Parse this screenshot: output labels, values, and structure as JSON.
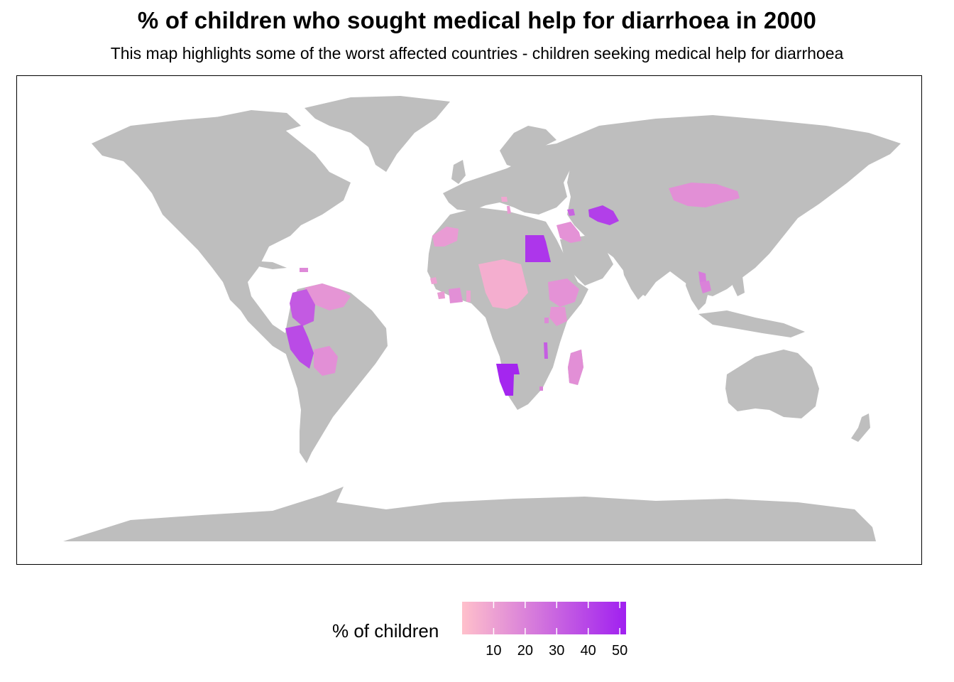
{
  "title": "% of children who sought medical help for diarrhoea in 2000",
  "subtitle": "This map highlights some of the worst affected countries - children seeking medical help for diarrhoea",
  "colors": {
    "land": "#bebebe",
    "scale_low": "#ffc0cb",
    "scale_high": "#a020f0",
    "border": "#000000"
  },
  "legend": {
    "title": "% of children",
    "ticks": [
      "10",
      "20",
      "30",
      "40",
      "50"
    ],
    "min": 0,
    "max": 52
  },
  "highlighted_regions": [
    {
      "name": "Mongolia",
      "value": 16
    },
    {
      "name": "Turkmenistan",
      "value": 42
    },
    {
      "name": "Armenia",
      "value": 30
    },
    {
      "name": "Egypt",
      "value": 45
    },
    {
      "name": "Jordan",
      "value": 15
    },
    {
      "name": "Iraq",
      "value": 15
    },
    {
      "name": "Albania",
      "value": 12
    },
    {
      "name": "Bosnia and Herzegovina",
      "value": 8
    },
    {
      "name": "Morocco",
      "value": 12
    },
    {
      "name": "Niger",
      "value": 6
    },
    {
      "name": "Chad",
      "value": 8
    },
    {
      "name": "Central African Republic",
      "value": 8
    },
    {
      "name": "Guinea-Bissau",
      "value": 10
    },
    {
      "name": "Sierra Leone",
      "value": 12
    },
    {
      "name": "Cote d'Ivoire",
      "value": 16
    },
    {
      "name": "Togo",
      "value": 10
    },
    {
      "name": "Ethiopia",
      "value": 15
    },
    {
      "name": "Kenya",
      "value": 14
    },
    {
      "name": "Rwanda",
      "value": 18
    },
    {
      "name": "Burundi",
      "value": 16
    },
    {
      "name": "Malawi",
      "value": 32
    },
    {
      "name": "Namibia",
      "value": 50
    },
    {
      "name": "Lesotho",
      "value": 20
    },
    {
      "name": "Madagascar",
      "value": 16
    },
    {
      "name": "Venezuela",
      "value": 14
    },
    {
      "name": "Colombia",
      "value": 33
    },
    {
      "name": "Guyana",
      "value": 12
    },
    {
      "name": "Suriname",
      "value": 10
    },
    {
      "name": "Peru",
      "value": 38
    },
    {
      "name": "Bolivia",
      "value": 16
    },
    {
      "name": "Dominican Republic",
      "value": 18
    },
    {
      "name": "Vietnam",
      "value": 22
    },
    {
      "name": "Cambodia",
      "value": 20
    }
  ]
}
